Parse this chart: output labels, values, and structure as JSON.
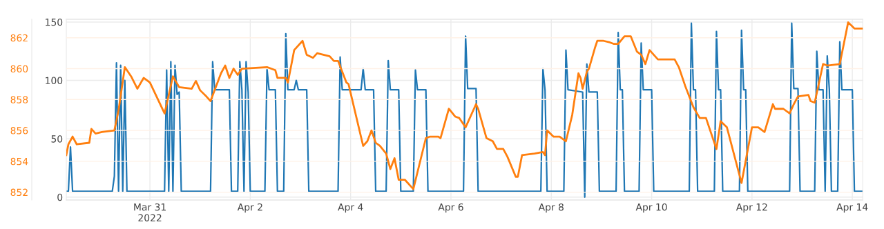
{
  "chart_data": {
    "type": "line",
    "grid": true,
    "xlim": [
      "2022-03-29T08:00",
      "2022-04-14T05:00"
    ],
    "xticks": [
      {
        "value": "2022-03-31",
        "label": "Mar 31\n2022"
      },
      {
        "value": "2022-04-02",
        "label": "Apr 2"
      },
      {
        "value": "2022-04-04",
        "label": "Apr 4"
      },
      {
        "value": "2022-04-06",
        "label": "Apr 6"
      },
      {
        "value": "2022-04-08",
        "label": "Apr 8"
      },
      {
        "value": "2022-04-10",
        "label": "Apr 10"
      },
      {
        "value": "2022-04-12",
        "label": "Apr 12"
      },
      {
        "value": "2022-04-14",
        "label": "Apr 14"
      }
    ],
    "ylim": [
      -2.4,
      152.4
    ],
    "yticks": [
      0,
      50,
      100,
      150
    ],
    "y2lim": [
      851.5,
      863.2
    ],
    "y2ticks": [
      852,
      854,
      856,
      858,
      860,
      862
    ],
    "series": [
      {
        "color": "#1f77b4",
        "x": [
          "2022-03-29T08:00",
          "2022-03-29T09:00",
          "2022-03-29T10:00",
          "2022-03-29T11:00",
          "2022-03-30T06:00",
          "2022-03-30T07:00",
          "2022-03-30T08:00",
          "2022-03-30T09:00",
          "2022-03-30T10:00",
          "2022-03-30T11:00",
          "2022-03-30T12:00",
          "2022-03-30T13:00",
          "2022-03-31T07:00",
          "2022-03-31T08:00",
          "2022-03-31T09:00",
          "2022-03-31T10:00",
          "2022-03-31T11:00",
          "2022-03-31T12:00",
          "2022-03-31T13:00",
          "2022-03-31T14:00",
          "2022-03-31T15:00",
          "2022-04-01T05:00",
          "2022-04-01T06:00",
          "2022-04-01T07:00",
          "2022-04-01T14:00",
          "2022-04-01T15:00",
          "2022-04-01T18:00",
          "2022-04-01T19:00",
          "2022-04-01T20:00",
          "2022-04-01T21:00",
          "2022-04-01T22:00",
          "2022-04-01T23:00",
          "2022-04-02T00:00",
          "2022-04-02T07:00",
          "2022-04-02T08:00",
          "2022-04-02T09:00",
          "2022-04-02T12:00",
          "2022-04-02T13:00",
          "2022-04-02T16:00",
          "2022-04-02T17:00",
          "2022-04-02T18:00",
          "2022-04-02T21:00",
          "2022-04-02T22:00",
          "2022-04-02T23:00",
          "2022-04-03T03:00",
          "2022-04-03T04:00",
          "2022-04-03T18:00",
          "2022-04-03T19:00",
          "2022-04-03T20:00",
          "2022-04-04T05:00",
          "2022-04-04T06:00",
          "2022-04-04T07:00",
          "2022-04-04T11:00",
          "2022-04-04T12:00",
          "2022-04-04T17:00",
          "2022-04-04T18:00",
          "2022-04-04T19:00",
          "2022-04-04T23:00",
          "2022-04-05T00:00",
          "2022-04-05T06:00",
          "2022-04-05T07:00",
          "2022-04-05T08:00",
          "2022-04-05T12:00",
          "2022-04-05T13:00",
          "2022-04-06T06:00",
          "2022-04-06T07:00",
          "2022-04-06T08:00",
          "2022-04-06T12:00",
          "2022-04-06T13:00",
          "2022-04-07T19:00",
          "2022-04-07T20:00",
          "2022-04-07T21:00",
          "2022-04-07T22:00",
          "2022-04-08T06:00",
          "2022-04-08T07:00",
          "2022-04-08T08:00",
          "2022-04-08T15:00",
          "2022-04-08T16:00",
          "2022-04-08T17:00",
          "2022-04-08T18:00",
          "2022-04-08T22:00",
          "2022-04-08T23:00",
          "2022-04-09T07:00",
          "2022-04-09T08:00",
          "2022-04-09T09:00",
          "2022-04-09T10:00",
          "2022-04-09T11:00",
          "2022-04-09T18:00",
          "2022-04-09T19:00",
          "2022-04-09T20:00",
          "2022-04-10T00:00",
          "2022-04-10T01:00",
          "2022-04-10T18:00",
          "2022-04-10T19:00",
          "2022-04-10T20:00",
          "2022-04-10T21:00",
          "2022-04-10T22:00",
          "2022-04-11T06:00",
          "2022-04-11T07:00",
          "2022-04-11T08:00",
          "2022-04-11T09:00",
          "2022-04-11T10:00",
          "2022-04-11T18:00",
          "2022-04-11T19:00",
          "2022-04-11T20:00",
          "2022-04-11T21:00",
          "2022-04-11T22:00",
          "2022-04-12T18:00",
          "2022-04-12T19:00",
          "2022-04-12T20:00",
          "2022-04-12T22:00",
          "2022-04-12T23:00",
          "2022-04-13T06:00",
          "2022-04-13T07:00",
          "2022-04-13T08:00",
          "2022-04-13T10:00",
          "2022-04-13T11:00",
          "2022-04-13T12:00",
          "2022-04-13T13:00",
          "2022-04-13T14:00",
          "2022-04-13T17:00",
          "2022-04-13T18:00",
          "2022-04-13T19:00",
          "2022-04-14T00:00",
          "2022-04-14T01:00",
          "2022-04-14T05:00"
        ],
        "values": [
          5,
          5,
          43,
          5,
          5,
          18,
          115,
          5,
          113,
          5,
          100,
          5,
          5,
          109,
          5,
          116,
          5,
          113,
          88,
          90,
          5,
          5,
          116,
          92,
          92,
          5,
          5,
          116,
          92,
          5,
          116,
          90,
          5,
          5,
          110,
          92,
          92,
          5,
          5,
          140,
          92,
          92,
          100,
          92,
          92,
          5,
          5,
          120,
          92,
          92,
          110,
          92,
          92,
          5,
          5,
          117,
          92,
          92,
          5,
          5,
          109,
          92,
          92,
          5,
          5,
          138,
          93,
          93,
          5,
          5,
          110,
          92,
          5,
          5,
          126,
          92,
          90,
          0,
          114,
          90,
          90,
          5,
          5,
          141,
          92,
          92,
          5,
          5,
          132,
          92,
          92,
          5,
          5,
          149,
          92,
          92,
          5,
          5,
          142,
          92,
          92,
          5,
          5,
          143,
          92,
          92,
          5,
          5,
          149,
          93,
          93,
          5,
          5,
          125,
          92,
          92,
          5,
          121,
          92,
          5,
          5,
          133,
          92,
          92,
          5,
          5
        ]
      },
      {
        "color": "#ff7f0e",
        "axis": "y2",
        "x": [
          "2022-03-29T08:00",
          "2022-03-29T09:00",
          "2022-03-29T11:00",
          "2022-03-29T13:00",
          "2022-03-29T19:00",
          "2022-03-29T20:00",
          "2022-03-29T22:00",
          "2022-03-30T01:00",
          "2022-03-30T07:00",
          "2022-03-30T09:00",
          "2022-03-30T12:00",
          "2022-03-30T15:00",
          "2022-03-30T18:00",
          "2022-03-30T21:00",
          "2022-03-31T00:00",
          "2022-03-31T07:00",
          "2022-03-31T11:00",
          "2022-03-31T14:00",
          "2022-03-31T20:00",
          "2022-03-31T22:00",
          "2022-04-01T00:00",
          "2022-04-01T03:00",
          "2022-04-01T05:00",
          "2022-04-01T10:00",
          "2022-04-01T12:00",
          "2022-04-01T14:00",
          "2022-04-01T16:00",
          "2022-04-01T18:00",
          "2022-04-01T20:00",
          "2022-04-02T08:00",
          "2022-04-02T12:00",
          "2022-04-02T13:00",
          "2022-04-02T17:00",
          "2022-04-02T18:00",
          "2022-04-02T21:00",
          "2022-04-03T01:00",
          "2022-04-03T03:00",
          "2022-04-03T06:00",
          "2022-04-03T08:00",
          "2022-04-03T14:00",
          "2022-04-03T16:00",
          "2022-04-03T18:00",
          "2022-04-03T22:00",
          "2022-04-03T23:00",
          "2022-04-04T06:00",
          "2022-04-04T08:00",
          "2022-04-04T10:00",
          "2022-04-04T12:00",
          "2022-04-04T14:00",
          "2022-04-04T17:00",
          "2022-04-04T19:00",
          "2022-04-04T21:00",
          "2022-04-04T23:00",
          "2022-04-05T02:00",
          "2022-04-05T06:00",
          "2022-04-05T12:00",
          "2022-04-05T14:00",
          "2022-04-05T18:00",
          "2022-04-05T19:00",
          "2022-04-05T23:00",
          "2022-04-06T02:00",
          "2022-04-06T04:00",
          "2022-04-06T07:00",
          "2022-04-06T12:00",
          "2022-04-06T13:00",
          "2022-04-06T17:00",
          "2022-04-06T20:00",
          "2022-04-06T22:00",
          "2022-04-07T01:00",
          "2022-04-07T03:00",
          "2022-04-07T07:00",
          "2022-04-07T08:00",
          "2022-04-07T10:00",
          "2022-04-07T16:00",
          "2022-04-07T20:00",
          "2022-04-07T21:00",
          "2022-04-07T22:00",
          "2022-04-08T01:00",
          "2022-04-08T04:00",
          "2022-04-08T07:00",
          "2022-04-08T10:00",
          "2022-04-08T13:00",
          "2022-04-08T14:00",
          "2022-04-08T15:00",
          "2022-04-08T17:00",
          "2022-04-08T18:00",
          "2022-04-08T21:00",
          "2022-04-08T22:00",
          "2022-04-09T01:00",
          "2022-04-09T04:00",
          "2022-04-09T06:00",
          "2022-04-09T08:00",
          "2022-04-09T11:00",
          "2022-04-09T14:00",
          "2022-04-09T17:00",
          "2022-04-09T19:00",
          "2022-04-09T21:00",
          "2022-04-09T23:00",
          "2022-04-10T03:00",
          "2022-04-10T11:00",
          "2022-04-10T13:00",
          "2022-04-10T16:00",
          "2022-04-10T20:00",
          "2022-04-10T23:00",
          "2022-04-11T02:00",
          "2022-04-11T07:00",
          "2022-04-11T09:00",
          "2022-04-11T12:00",
          "2022-04-11T19:00",
          "2022-04-12T00:00",
          "2022-04-12T03:00",
          "2022-04-12T06:00",
          "2022-04-12T10:00",
          "2022-04-12T11:00",
          "2022-04-12T15:00",
          "2022-04-12T18:00",
          "2022-04-12T20:00",
          "2022-04-12T22:00",
          "2022-04-13T03:00",
          "2022-04-13T04:00",
          "2022-04-13T06:00",
          "2022-04-13T10:00",
          "2022-04-13T12:00",
          "2022-04-13T18:00",
          "2022-04-13T22:00",
          "2022-04-14T01:00",
          "2022-04-14T05:00"
        ],
        "values": [
          854.4,
          855.1,
          855.6,
          855.1,
          855.2,
          856.1,
          855.8,
          855.9,
          856.0,
          857.3,
          860.1,
          859.5,
          858.7,
          859.4,
          859.1,
          857.1,
          859.5,
          858.8,
          858.7,
          859.2,
          858.6,
          858.2,
          857.9,
          859.7,
          860.2,
          859.4,
          860.0,
          859.6,
          860.0,
          860.1,
          859.9,
          859.4,
          859.4,
          859.1,
          861.2,
          861.8,
          860.9,
          860.7,
          861.0,
          860.8,
          860.5,
          860.5,
          859.1,
          859.0,
          855.0,
          855.3,
          856.0,
          855.2,
          855.0,
          854.5,
          853.5,
          854.2,
          852.8,
          852.8,
          852.2,
          855.5,
          855.6,
          855.6,
          855.5,
          857.4,
          856.9,
          856.8,
          856.2,
          857.7,
          857.4,
          855.5,
          855.3,
          854.8,
          854.8,
          854.3,
          853.0,
          853.0,
          854.4,
          854.5,
          854.6,
          854.4,
          856.0,
          855.6,
          855.6,
          855.3,
          857.0,
          859.7,
          859.4,
          858.7,
          859.8,
          860.0,
          861.4,
          861.8,
          861.8,
          861.7,
          861.6,
          861.6,
          862.1,
          862.1,
          861.1,
          860.9,
          860.3,
          861.2,
          860.6,
          860.6,
          860.1,
          858.9,
          857.5,
          856.8,
          856.8,
          854.8,
          856.6,
          856.2,
          852.6,
          856.2,
          856.2,
          855.9,
          857.7,
          857.4,
          857.4,
          857.1,
          857.7,
          858.2,
          858.3,
          857.9,
          857.8,
          860.3,
          860.2,
          860.3,
          863.0,
          862.6,
          862.6
        ]
      }
    ]
  }
}
